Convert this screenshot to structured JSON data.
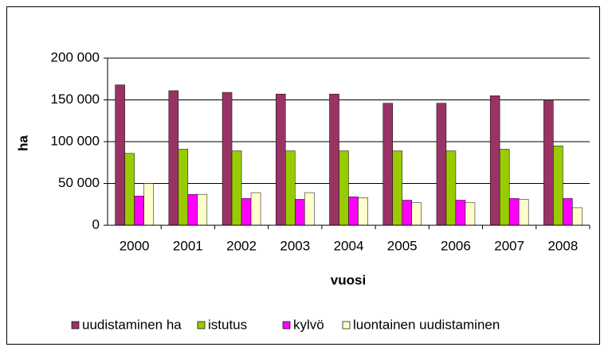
{
  "chart_data": {
    "type": "bar",
    "categories": [
      "2000",
      "2001",
      "2002",
      "2003",
      "2004",
      "2005",
      "2006",
      "2007",
      "2008"
    ],
    "series": [
      {
        "name": "uudistaminen ha",
        "color": "#993366",
        "values": [
          168000,
          161000,
          159000,
          157000,
          157000,
          146000,
          146000,
          155000,
          149000
        ]
      },
      {
        "name": "istutus",
        "color": "#99cc00",
        "values": [
          86000,
          91000,
          89000,
          89000,
          89000,
          89000,
          89000,
          91000,
          95000
        ]
      },
      {
        "name": "kylvö",
        "color": "#ff00ff",
        "values": [
          35000,
          37000,
          32000,
          31000,
          34000,
          30000,
          30000,
          32000,
          32000
        ]
      },
      {
        "name": "luontainen uudistaminen",
        "color": "#ffffcc",
        "values": [
          50000,
          37000,
          39000,
          39000,
          33000,
          27000,
          27000,
          31000,
          21000
        ]
      }
    ],
    "xlabel": "vuosi",
    "ylabel": "ha",
    "ylim": [
      0,
      200000
    ],
    "yticks": [
      0,
      {
        "value": 50000,
        "label": "50 000"
      },
      {
        "value": 100000,
        "label": "100 000"
      },
      {
        "value": 150000,
        "label": "150 000"
      },
      {
        "value": 200000,
        "label": "200 000"
      }
    ],
    "grid": true,
    "legend": "bottom"
  }
}
